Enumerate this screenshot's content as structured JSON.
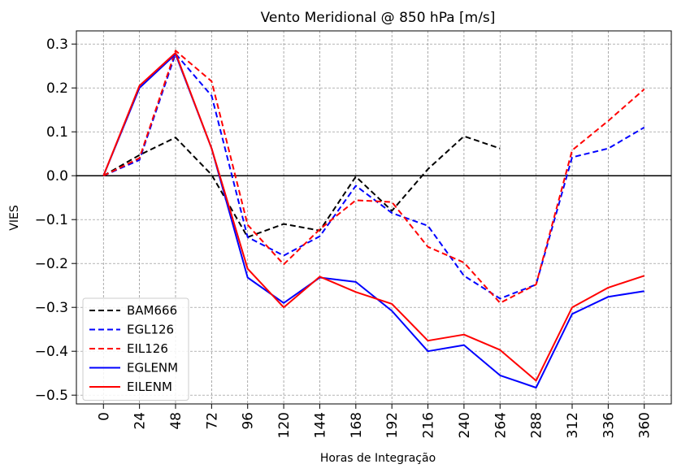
{
  "chart_data": {
    "type": "line",
    "title": "Vento Meridional @ 850 hPa [m/s]",
    "xlabel": "Horas de Integração",
    "ylabel": "VIES",
    "x": [
      0,
      24,
      48,
      72,
      96,
      120,
      144,
      168,
      192,
      216,
      240,
      264,
      288,
      312,
      336,
      360
    ],
    "xticks": [
      "0",
      "24",
      "48",
      "72",
      "96",
      "120",
      "144",
      "168",
      "192",
      "216",
      "240",
      "264",
      "288",
      "312",
      "336",
      "360"
    ],
    "yticks": [
      "0.3",
      "0.2",
      "0.1",
      "0.0",
      "−0.1",
      "−0.2",
      "−0.3",
      "−0.4",
      "−0.5"
    ],
    "ytick_values": [
      0.3,
      0.2,
      0.1,
      0.0,
      -0.1,
      -0.2,
      -0.3,
      -0.4,
      -0.5
    ],
    "xlim": [
      -18,
      378
    ],
    "ylim": [
      -0.52,
      0.33
    ],
    "grid": true,
    "legend_position": "lower-left",
    "series": [
      {
        "name": "BAM666",
        "color": "#000000",
        "dash": "dashed",
        "values": [
          0.0,
          0.047,
          0.087,
          0.002,
          -0.14,
          -0.11,
          -0.125,
          -0.002,
          -0.08,
          0.015,
          0.09,
          0.062,
          null,
          null,
          null,
          null
        ]
      },
      {
        "name": "EGL126",
        "color": "#0000ff",
        "dash": "dashed",
        "values": [
          0.0,
          0.036,
          0.278,
          0.182,
          -0.14,
          -0.182,
          -0.138,
          -0.023,
          -0.085,
          -0.114,
          -0.228,
          -0.28,
          -0.248,
          0.042,
          0.062,
          0.11
        ]
      },
      {
        "name": "EIL126",
        "color": "#ff0000",
        "dash": "dashed",
        "values": [
          0.0,
          0.04,
          0.285,
          0.215,
          -0.112,
          -0.202,
          -0.122,
          -0.056,
          -0.06,
          -0.162,
          -0.198,
          -0.29,
          -0.248,
          0.058,
          0.125,
          0.197
        ]
      },
      {
        "name": "EGLENM",
        "color": "#0000ff",
        "dash": "solid",
        "values": [
          0.0,
          0.2,
          0.277,
          0.062,
          -0.232,
          -0.29,
          -0.232,
          -0.242,
          -0.308,
          -0.4,
          -0.386,
          -0.455,
          -0.483,
          -0.315,
          -0.276,
          -0.263
        ]
      },
      {
        "name": "EILENM",
        "color": "#ff0000",
        "dash": "solid",
        "values": [
          0.0,
          0.205,
          0.28,
          0.062,
          -0.212,
          -0.3,
          -0.23,
          -0.265,
          -0.292,
          -0.376,
          -0.362,
          -0.397,
          -0.467,
          -0.3,
          -0.255,
          -0.228
        ]
      }
    ]
  }
}
